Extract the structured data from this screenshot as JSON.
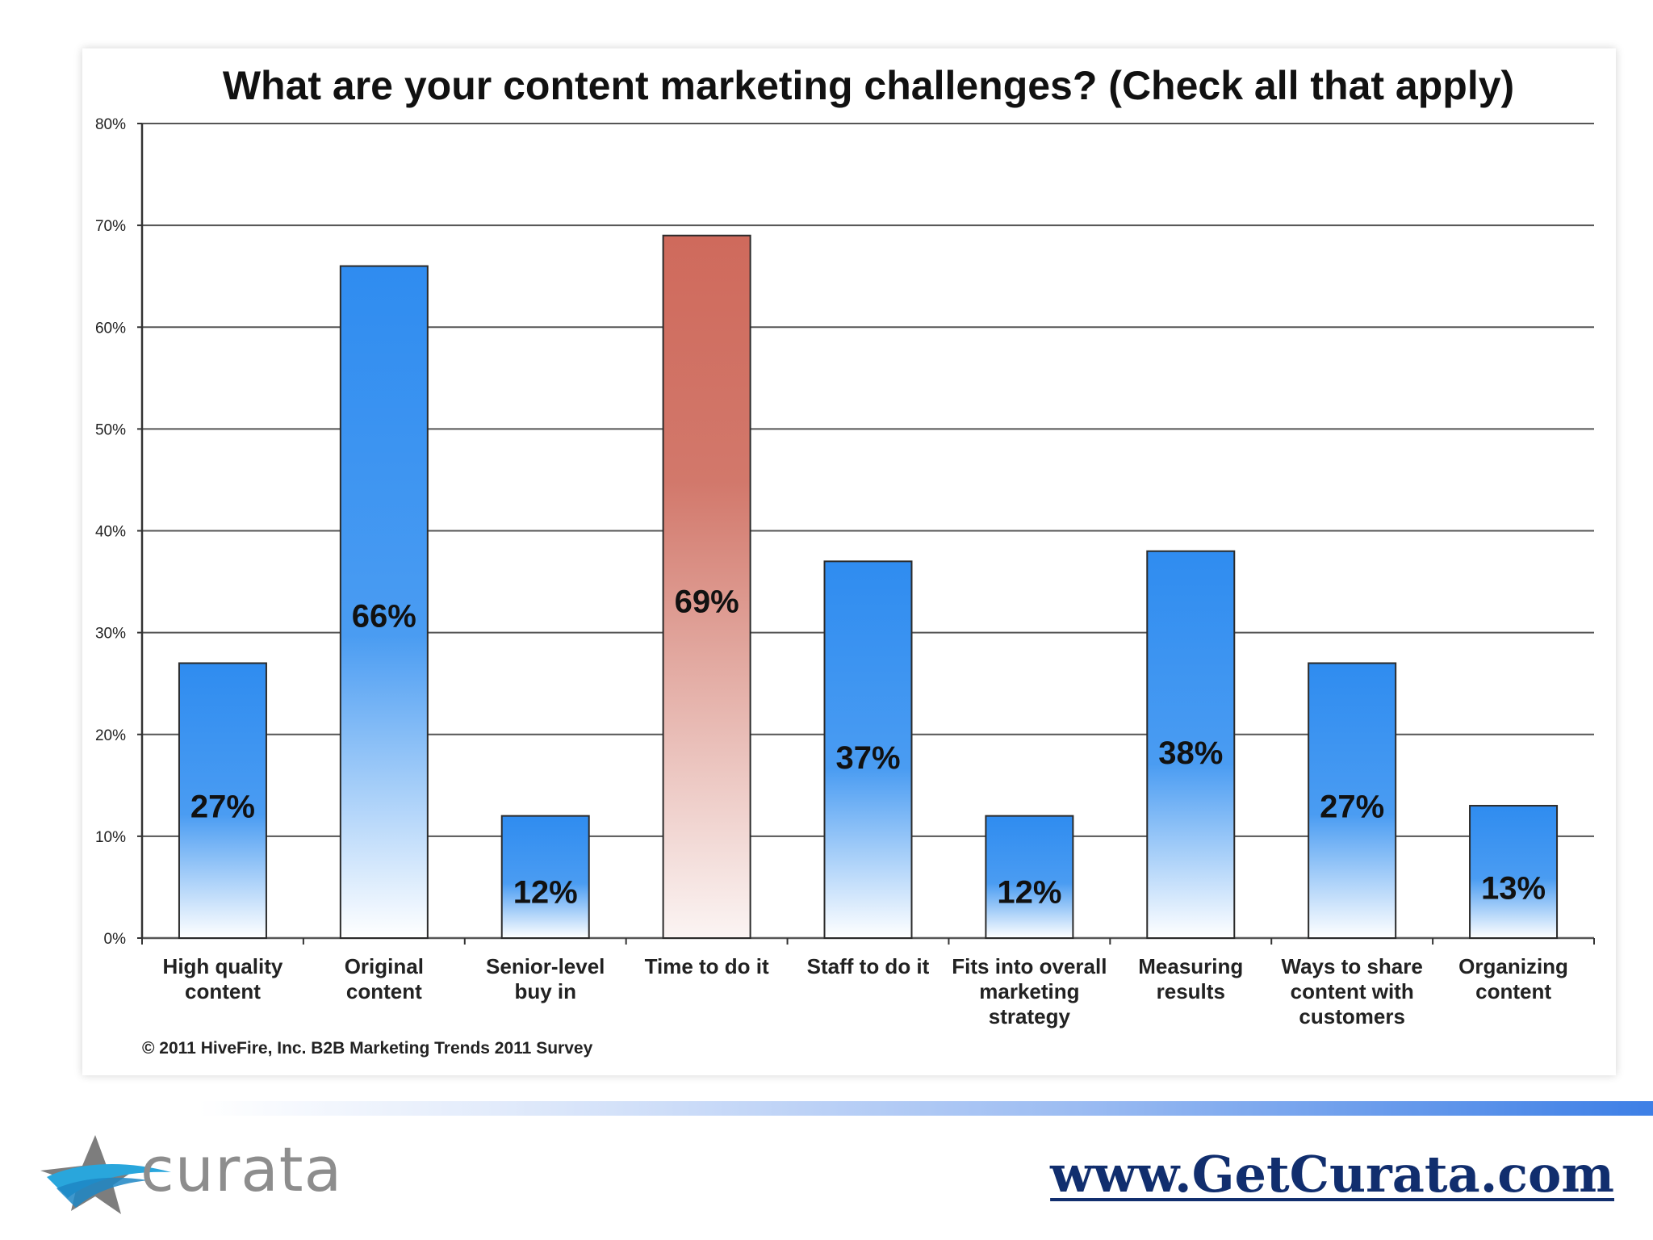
{
  "chart_data": {
    "type": "bar",
    "title": "What are your content marketing challenges? (Check all that apply)",
    "categories": [
      [
        "High quality",
        "content"
      ],
      [
        "Original",
        "content"
      ],
      [
        "Senior-level",
        "buy in"
      ],
      [
        "Time to do it"
      ],
      [
        "Staff to do it"
      ],
      [
        "Fits into overall",
        "marketing",
        "strategy"
      ],
      [
        "Measuring",
        "results"
      ],
      [
        "Ways to share",
        "content with",
        "customers"
      ],
      [
        "Organizing",
        "content"
      ]
    ],
    "values": [
      27,
      66,
      12,
      69,
      37,
      12,
      38,
      27,
      13
    ],
    "value_labels": [
      "27%",
      "66%",
      "12%",
      "69%",
      "37%",
      "12%",
      "38%",
      "27%",
      "13%"
    ],
    "highlight_index": 3,
    "yticks": [
      "0%",
      "10%",
      "20%",
      "30%",
      "40%",
      "50%",
      "60%",
      "70%",
      "80%"
    ],
    "ylim": [
      0,
      80
    ],
    "grid": true,
    "colors": {
      "bar": "#2f8cf0",
      "highlight": "#cf6a5c",
      "grid": "#555555"
    },
    "source": "© 2011 HiveFire, Inc. B2B Marketing Trends 2011 Survey"
  },
  "footer": {
    "logo_text": "curata",
    "logo_icon": "star-swoosh-icon",
    "website": "www.GetCurata.com"
  }
}
